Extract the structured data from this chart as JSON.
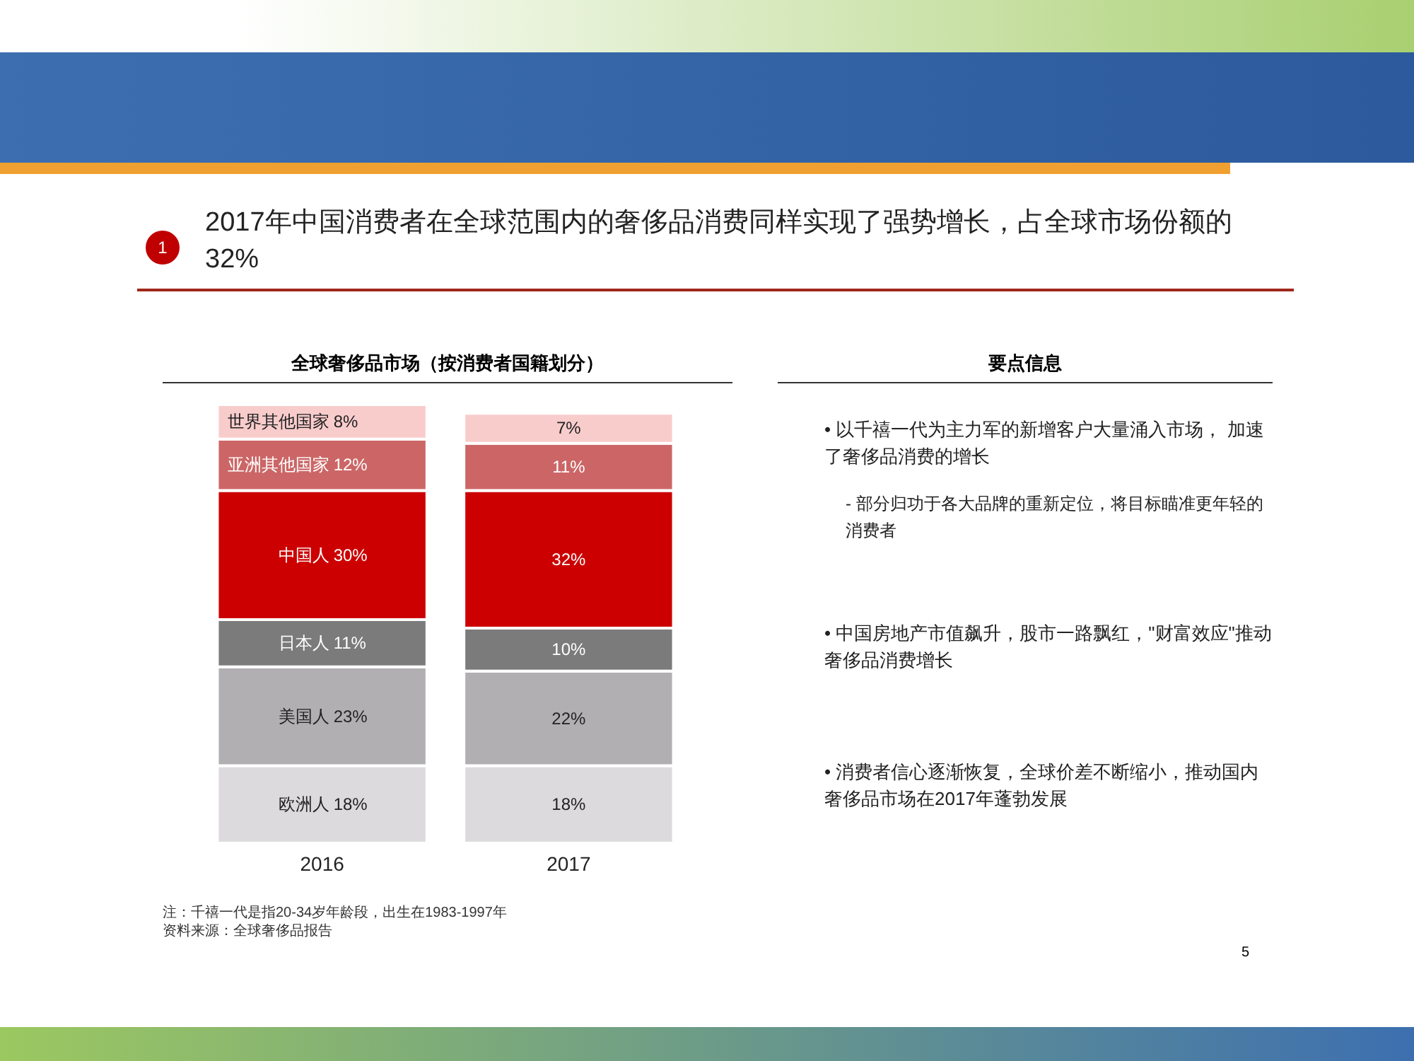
{
  "chart_data": {
    "type": "bar",
    "stacked": true,
    "title": "2017年中国消费者在全球范围内的奢侈品消费同样实现了强势增长，占全球市场份额的32%",
    "subtitle": "全球奢侈品市场（按消费者国籍划分）",
    "categories": [
      "2016",
      "2017"
    ],
    "series": [
      {
        "name": "欧洲人",
        "color": "#dcdadd",
        "values": [
          18,
          18
        ],
        "value_labels": [
          "18%",
          "18%"
        ]
      },
      {
        "name": "美国人",
        "color": "#b1afb2",
        "values": [
          23,
          22
        ],
        "value_labels": [
          "23%",
          "22%"
        ]
      },
      {
        "name": "日本人",
        "color": "#7b7b7b",
        "values": [
          11,
          10
        ],
        "value_labels": [
          "11%",
          "10%"
        ]
      },
      {
        "name": "中国人",
        "color": "#cc0000",
        "values": [
          30,
          32
        ],
        "value_labels": [
          "30%",
          "32%"
        ]
      },
      {
        "name": "亚洲其他国家",
        "color": "#cc6666",
        "values": [
          12,
          11
        ],
        "value_labels": [
          "12%",
          "11%"
        ]
      },
      {
        "name": "世界其他国家",
        "color": "#f9cccc",
        "values": [
          8,
          7
        ],
        "value_labels": [
          "8%",
          "7%"
        ]
      }
    ],
    "tick_labels": "x",
    "legend": false,
    "grid": false,
    "annotations": [
      "1",
      "要点信息",
      "• 以千禧一代为主力军的新增客户大量涌入市场， 加速了奢侈品消费的增长",
      "- 部分归功于各大品牌的重新定位，将目标瞄准更年轻的消费者",
      "• 中国房地产市值飙升，股市一路飘红，\"财富效应\"推动奢侈品消费增长",
      "• 消费者信心逐渐恢复，全球价差不断缩小，推动国内奢侈品市场在2017年蓬勃发展",
      "注：千禧一代是指20-34岁年龄段，出生在1983-1997年",
      "资料来源：全球奢侈品报告",
      "5"
    ]
  }
}
